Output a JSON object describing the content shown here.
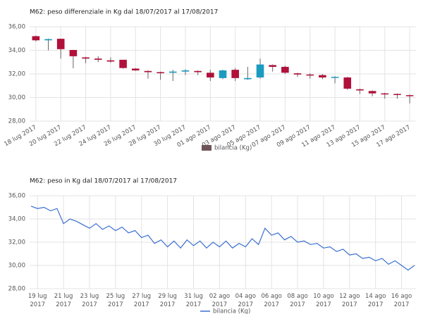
{
  "chart_data": [
    {
      "type": "candlestick",
      "title": "M62: peso differenziale in Kg dal 18/07/2017 al 17/08/2017",
      "categories": [
        "18 lug 2017",
        null,
        "20 lug 2017",
        null,
        "22 lug 2017",
        null,
        "24 lug 2017",
        null,
        "26 lug 2017",
        null,
        "28 lug 2017",
        null,
        "30 lug 2017",
        null,
        "01 ago 2017",
        null,
        "03 ago 2017",
        null,
        "05 ago 2017",
        null,
        "07 ago 2017",
        null,
        "09 ago 2017",
        null,
        "11 ago 2017",
        null,
        "13 ago 2017",
        null,
        "15 ago 2017",
        null,
        "17 ago 2017"
      ],
      "open": [
        35.2,
        34.85,
        34.98,
        34.03,
        33.4,
        33.3,
        33.15,
        33.2,
        32.45,
        32.25,
        32.15,
        32.1,
        32.2,
        32.25,
        32.1,
        31.65,
        32.35,
        31.55,
        31.7,
        32.75,
        32.6,
        32.05,
        31.95,
        31.9,
        31.7,
        31.7,
        30.7,
        30.55,
        30.35,
        30.3,
        30.2
      ],
      "high": [
        35.25,
        35.0,
        35.0,
        34.05,
        33.45,
        33.5,
        33.4,
        33.2,
        32.5,
        32.3,
        32.2,
        32.35,
        32.4,
        32.3,
        32.35,
        32.35,
        32.5,
        32.6,
        33.3,
        32.8,
        32.7,
        32.1,
        32.05,
        32.0,
        31.8,
        31.75,
        30.75,
        30.6,
        30.4,
        30.35,
        30.25
      ],
      "low": [
        34.75,
        34.0,
        33.3,
        32.48,
        32.9,
        33.0,
        32.95,
        32.45,
        32.25,
        31.6,
        31.5,
        31.4,
        31.9,
        31.9,
        31.4,
        31.55,
        31.4,
        31.5,
        31.6,
        32.2,
        32.0,
        31.75,
        31.6,
        31.55,
        31.2,
        30.65,
        30.3,
        30.1,
        29.9,
        29.9,
        29.5
      ],
      "close": [
        34.85,
        34.95,
        34.1,
        33.5,
        33.3,
        33.2,
        33.05,
        32.5,
        32.3,
        32.15,
        32.1,
        32.2,
        32.3,
        32.15,
        31.7,
        32.3,
        31.65,
        31.65,
        32.8,
        32.6,
        32.1,
        31.95,
        31.9,
        31.7,
        31.75,
        30.75,
        30.6,
        30.35,
        30.3,
        30.25,
        30.15
      ],
      "up_color": "#1b9bbf",
      "down_color": "#b0103a",
      "legend": {
        "name": "bilancia (Kg)",
        "color": "#6e5358"
      },
      "ylim": [
        28,
        36
      ],
      "yticks": [
        {
          "value": 28,
          "label": "28,00"
        },
        {
          "value": 30,
          "label": "30,00"
        },
        {
          "value": 32,
          "label": "32,00"
        },
        {
          "value": 34,
          "label": "34,00"
        },
        {
          "value": 36,
          "label": "36,00"
        }
      ],
      "grid": true
    },
    {
      "type": "line",
      "title": "M62: peso in Kg dal 18/07/2017 al 17/08/2017",
      "categories": [
        null,
        "19 lug 2017",
        null,
        null,
        null,
        "21 lug 2017",
        null,
        null,
        null,
        "23 lug 2017",
        null,
        null,
        null,
        "25 lug 2017",
        null,
        null,
        null,
        "27 lug 2017",
        null,
        null,
        null,
        "29 lug 2017",
        null,
        null,
        null,
        "31 lug 2017",
        null,
        null,
        null,
        "02 ago 2017",
        null,
        null,
        null,
        "04 ago 2017",
        null,
        null,
        null,
        "06 ago 2017",
        null,
        null,
        null,
        "08 ago 2017",
        null,
        null,
        null,
        "10 ago 2017",
        null,
        null,
        null,
        "12 ago 2017",
        null,
        null,
        null,
        "14 ago 2017",
        null,
        null,
        null,
        "16 ago 2017",
        null,
        null
      ],
      "series": [
        {
          "name": "bilancia (Kg)",
          "color": "#3a6fd0",
          "values": [
            35.1,
            34.9,
            35.0,
            34.7,
            34.9,
            33.6,
            34.0,
            33.8,
            33.5,
            33.2,
            33.6,
            33.1,
            33.4,
            33.0,
            33.3,
            32.8,
            33.0,
            32.4,
            32.6,
            31.9,
            32.2,
            31.6,
            32.1,
            31.5,
            32.2,
            31.7,
            32.1,
            31.5,
            32.0,
            31.6,
            32.1,
            31.5,
            31.9,
            31.6,
            32.3,
            31.8,
            33.2,
            32.6,
            32.8,
            32.2,
            32.5,
            32.0,
            32.1,
            31.8,
            31.9,
            31.5,
            31.6,
            31.2,
            31.4,
            30.9,
            31.0,
            30.6,
            30.7,
            30.4,
            30.6,
            30.1,
            30.4,
            30.0,
            29.6,
            30.0
          ]
        }
      ],
      "ylim": [
        28,
        36
      ],
      "yticks": [
        {
          "value": 28,
          "label": "28,00"
        },
        {
          "value": 30,
          "label": "30,00"
        },
        {
          "value": 32,
          "label": "32,00"
        },
        {
          "value": 34,
          "label": "34,00"
        },
        {
          "value": 36,
          "label": "36,00"
        }
      ],
      "grid": true
    }
  ]
}
